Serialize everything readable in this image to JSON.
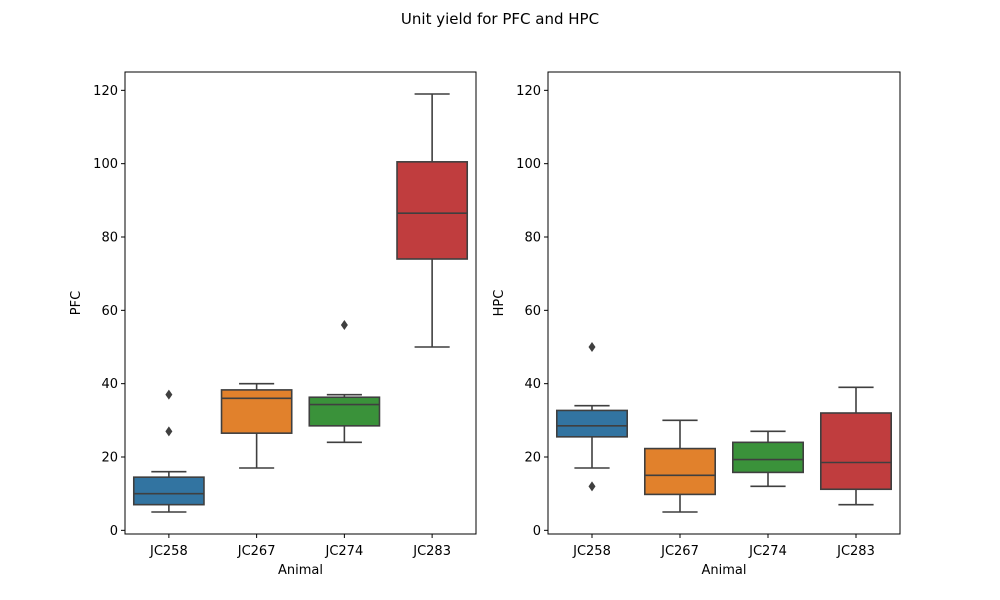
{
  "title": "Unit yield for PFC and HPC",
  "chart_data": [
    {
      "type": "box",
      "xlabel": "Animal",
      "ylabel": "PFC",
      "ylim": [
        -1,
        125
      ],
      "yticks": [
        0,
        20,
        40,
        60,
        80,
        100,
        120
      ],
      "grid": false,
      "categories": [
        "JC258",
        "JC267",
        "JC274",
        "JC283"
      ],
      "boxes": [
        {
          "category": "JC258",
          "color": "#3274a1",
          "whisker_low": 5,
          "q1": 7,
          "median": 10,
          "q3": 14.5,
          "whisker_high": 16,
          "outliers": [
            27,
            37
          ]
        },
        {
          "category": "JC267",
          "color": "#e1812c",
          "whisker_low": 17,
          "q1": 26.5,
          "median": 36,
          "q3": 38.3,
          "whisker_high": 40,
          "outliers": []
        },
        {
          "category": "JC274",
          "color": "#3a923a",
          "whisker_low": 24,
          "q1": 28.5,
          "median": 34.3,
          "q3": 36.3,
          "whisker_high": 37,
          "outliers": [
            56
          ]
        },
        {
          "category": "JC283",
          "color": "#c03d3e",
          "whisker_low": 50,
          "q1": 74,
          "median": 86.5,
          "q3": 100.5,
          "whisker_high": 119,
          "outliers": []
        }
      ]
    },
    {
      "type": "box",
      "xlabel": "Animal",
      "ylabel": "HPC",
      "ylim": [
        -1,
        125
      ],
      "yticks": [
        0,
        20,
        40,
        60,
        80,
        100,
        120
      ],
      "grid": false,
      "categories": [
        "JC258",
        "JC267",
        "JC274",
        "JC283"
      ],
      "boxes": [
        {
          "category": "JC258",
          "color": "#3274a1",
          "whisker_low": 17,
          "q1": 25.5,
          "median": 28.5,
          "q3": 32.7,
          "whisker_high": 34,
          "outliers": [
            50,
            12
          ]
        },
        {
          "category": "JC267",
          "color": "#e1812c",
          "whisker_low": 5,
          "q1": 9.8,
          "median": 15,
          "q3": 22.3,
          "whisker_high": 30,
          "outliers": []
        },
        {
          "category": "JC274",
          "color": "#3a923a",
          "whisker_low": 12,
          "q1": 15.8,
          "median": 19.3,
          "q3": 24,
          "whisker_high": 27,
          "outliers": []
        },
        {
          "category": "JC283",
          "color": "#c03d3e",
          "whisker_low": 7,
          "q1": 11.2,
          "median": 18.5,
          "q3": 32,
          "whisker_high": 39,
          "outliers": []
        }
      ]
    }
  ]
}
